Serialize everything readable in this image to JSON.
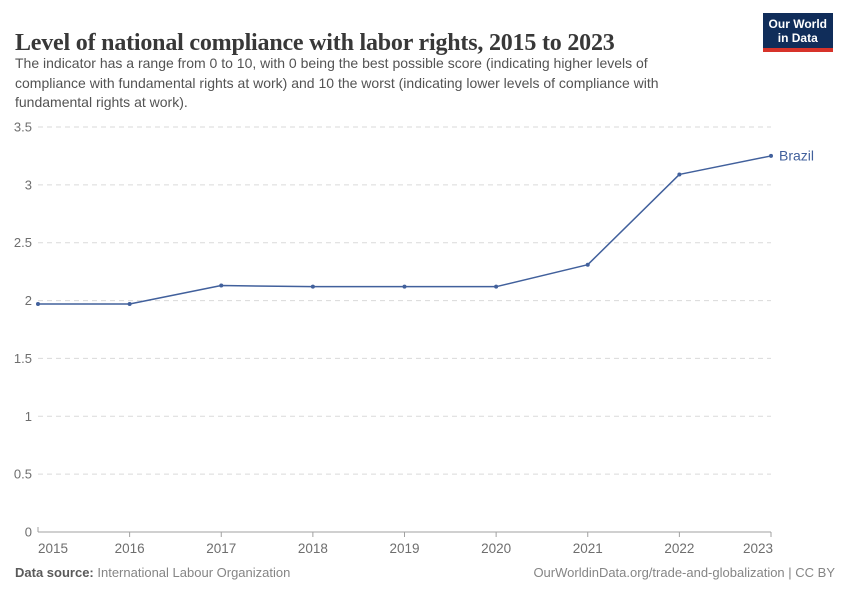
{
  "header": {
    "title": "Level of national compliance with labor rights, 2015 to 2023",
    "subtitle_lines": [
      "The indicator has a range from 0 to 10, with 0 being the best possible score (indicating higher levels of",
      "compliance with fundamental rights at work) and 10 the worst (indicating lower levels of compliance with",
      "fundamental rights at work)."
    ],
    "logo": {
      "line1": "Our World",
      "line2": "in Data",
      "bg_color": "#102d5a",
      "stripe_color": "#d7332a"
    }
  },
  "chart_data": {
    "type": "line",
    "title": "Level of national compliance with labor rights, 2015 to 2023",
    "x": [
      2015,
      2016,
      2017,
      2018,
      2019,
      2020,
      2021,
      2022,
      2023
    ],
    "series": [
      {
        "name": "Brazil",
        "color": "#41609c",
        "values": [
          1.97,
          1.97,
          2.13,
          2.12,
          2.12,
          2.12,
          2.31,
          3.09,
          3.25
        ]
      }
    ],
    "xlabel": "",
    "ylabel": "",
    "ylim": [
      0,
      3.5
    ],
    "yticks": [
      0,
      0.5,
      1,
      1.5,
      2,
      2.5,
      3,
      3.5
    ],
    "ytick_labels": [
      "0",
      "0.5",
      "1",
      "1.5",
      "2",
      "2.5",
      "3",
      "3.5"
    ],
    "grid": "horizontal-dashed",
    "legend": "end-of-line-label",
    "entity_label": "Brazil"
  },
  "footer": {
    "source_label": "Data source:",
    "source_value": "International Labour Organization",
    "rights": "OurWorldinData.org/trade-and-globalization | CC BY"
  },
  "colors": {
    "line": "#41609c",
    "grid": "#dadada",
    "axis": "#a1a1a1",
    "tick_label": "#6e6e6e",
    "title": "#383838",
    "subtitle": "#535353",
    "footer": "#858585"
  }
}
